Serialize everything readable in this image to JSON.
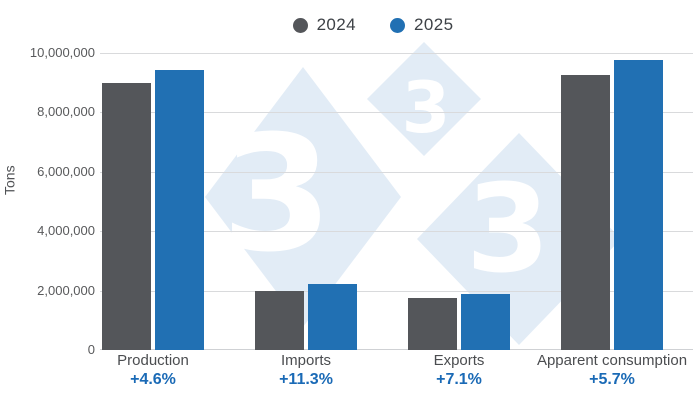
{
  "legend": {
    "items": [
      {
        "label": "2024",
        "color": "#54565a"
      },
      {
        "label": "2025",
        "color": "#2170b3"
      }
    ]
  },
  "chart_data": {
    "type": "bar",
    "title": "",
    "ylabel": "Tons",
    "xlabel": "",
    "categories": [
      "Production",
      "Imports",
      "Exports",
      "Apparent consumption"
    ],
    "series": [
      {
        "name": "2024",
        "color": "#54565a",
        "values": [
          9000000,
          2000000,
          1750000,
          9250000
        ]
      },
      {
        "name": "2025",
        "color": "#2170b3",
        "values": [
          9414000,
          2226000,
          1874000,
          9777000
        ]
      }
    ],
    "change_labels": [
      "+4.6%",
      "+11.3%",
      "+7.1%",
      "+5.7%"
    ],
    "change_label_color": "#1a6ab6",
    "ylim": [
      0,
      10000000
    ],
    "yticks": [
      0,
      2000000,
      4000000,
      6000000,
      8000000,
      10000000
    ],
    "ytick_labels": [
      "0",
      "2,000,000",
      "4,000,000",
      "6,000,000",
      "8,000,000",
      "10,000,000"
    ],
    "grid": "horizontal",
    "legend_position": "top"
  },
  "watermark": {
    "glyph": "3",
    "diamond_color": "#e2ecf6",
    "glyph_color": "#ffffff"
  }
}
